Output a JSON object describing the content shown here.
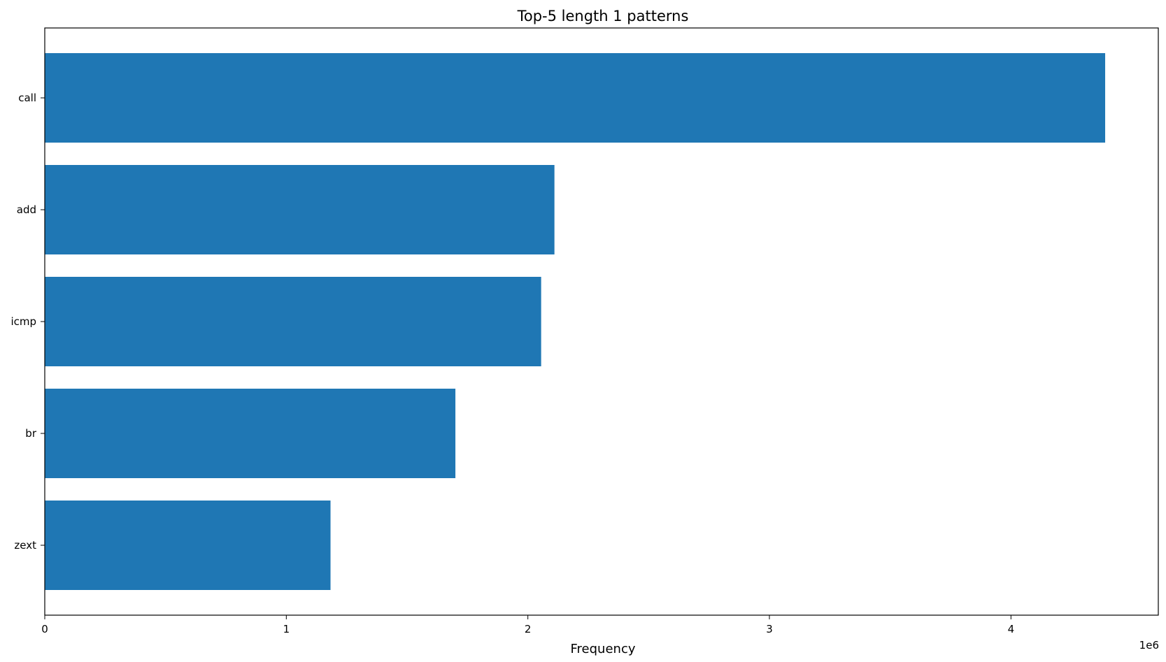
{
  "colors": {
    "bar": "#1f77b4",
    "axes": "#000000",
    "background": "#ffffff"
  },
  "chart_data": {
    "type": "bar",
    "orientation": "horizontal",
    "title": "Top-5 length 1 patterns",
    "xlabel": "Frequency",
    "ylabel": "",
    "x_offset_label": "1e6",
    "categories": [
      "call",
      "add",
      "icmp",
      "br",
      "zext"
    ],
    "values": [
      4390000,
      2110000,
      2055000,
      1700000,
      1183000
    ],
    "xlim": [
      0,
      4610000
    ],
    "x_ticks": [
      0,
      1000000,
      2000000,
      3000000,
      4000000
    ],
    "x_tick_labels": [
      "0",
      "1",
      "2",
      "3",
      "4"
    ],
    "grid": false,
    "legend": "none"
  }
}
